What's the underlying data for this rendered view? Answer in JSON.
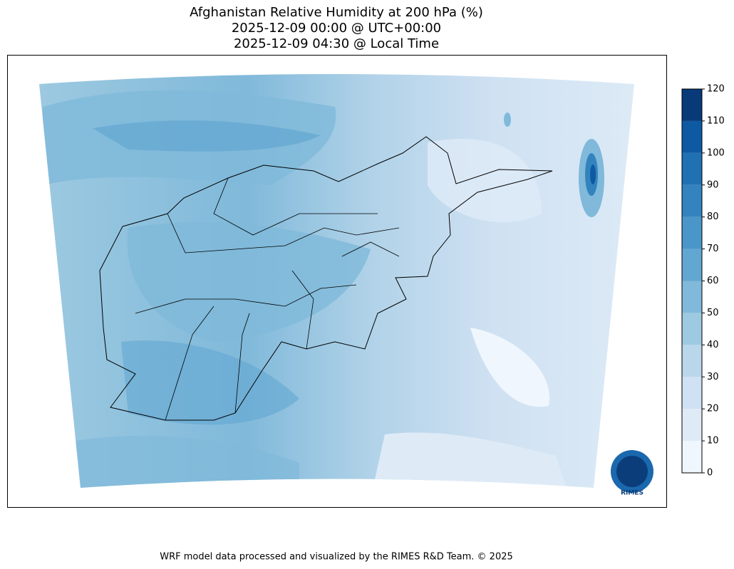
{
  "title": [
    "Afghanistan Relative Humidity at 200 hPa (%)",
    "2025-12-09 00:00 @ UTC+00:00",
    "2025-12-09 04:30 @ Local Time"
  ],
  "colorbar": {
    "ticks": [
      0,
      10,
      20,
      30,
      40,
      50,
      60,
      70,
      80,
      90,
      100,
      110,
      120
    ],
    "colors": [
      "#eff6fd",
      "#deebf7",
      "#cfe1f2",
      "#bad6eb",
      "#9ecae1",
      "#80b9da",
      "#62a7d2",
      "#4a96c9",
      "#3383be",
      "#2070b4",
      "#0d5aa3",
      "#083a7a"
    ]
  },
  "logo": "RIMES",
  "footer": "WRF model data processed and visualized by the RIMES R&D Team. © 2025"
}
